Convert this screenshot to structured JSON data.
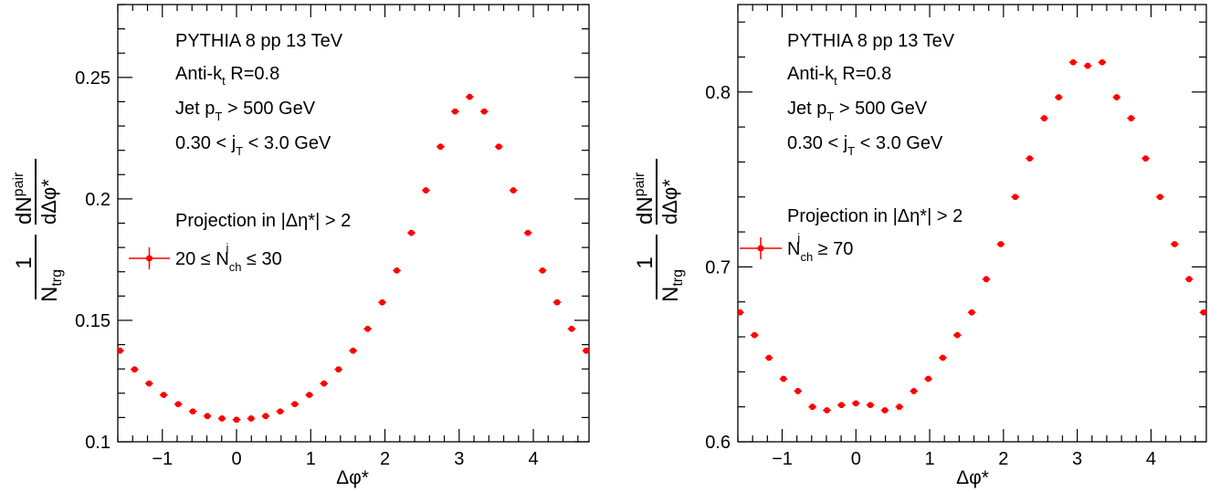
{
  "chart_data": [
    {
      "type": "scatter",
      "xlabel": "Δφ*",
      "ylabel": {
        "frac1_num": "1",
        "frac1_den": "N",
        "frac1_den_sub": "trg",
        "frac2_num": "dN",
        "frac2_num_sup": "pair",
        "frac2_den": "dΔφ*"
      },
      "xlim": [
        -1.6,
        4.75
      ],
      "ylim": [
        0.1,
        0.28
      ],
      "xticks": [
        {
          "v": -1,
          "label": "−1"
        },
        {
          "v": 0,
          "label": "0"
        },
        {
          "v": 1,
          "label": "1"
        },
        {
          "v": 2,
          "label": "2"
        },
        {
          "v": 3,
          "label": "3"
        },
        {
          "v": 4,
          "label": "4"
        }
      ],
      "yticks": [
        {
          "v": 0.1,
          "label": "0.1"
        },
        {
          "v": 0.15,
          "label": "0.15"
        },
        {
          "v": 0.2,
          "label": "0.2"
        },
        {
          "v": 0.25,
          "label": "0.25"
        }
      ],
      "annotations": {
        "generator": "PYTHIA 8 pp 13 TeV",
        "algo_pre": "Anti-k",
        "algo_sub": "t",
        "algo_post": " R=0.8",
        "jet_pre": "Jet p",
        "jet_sub": "T",
        "jet_post": " > 500 GeV",
        "jt_pre": "0.30 < j",
        "jt_sub": "T",
        "jt_post": " < 3.0 GeV",
        "projection": "Projection in |Δη*| > 2"
      },
      "legend": {
        "pre": "20 ≤ N",
        "sub": "ch",
        "sup": "j",
        "post": " ≤ 30"
      },
      "series": [
        {
          "color": "#ff0000",
          "x": [
            -1.5708,
            -1.3744,
            -1.1781,
            -0.9817,
            -0.7854,
            -0.589,
            -0.3927,
            -0.1963,
            0.0,
            0.1963,
            0.3927,
            0.589,
            0.7854,
            0.9817,
            1.1781,
            1.3744,
            1.5708,
            1.7671,
            1.9635,
            2.1598,
            2.3562,
            2.5525,
            2.7489,
            2.9452,
            3.1416,
            3.3379,
            3.5343,
            3.7306,
            3.927,
            4.1233,
            4.3197,
            4.516,
            4.7124
          ],
          "y": [
            0.1375,
            0.1298,
            0.124,
            0.1193,
            0.1155,
            0.1125,
            0.1106,
            0.1096,
            0.1091,
            0.1096,
            0.1106,
            0.1125,
            0.1155,
            0.1193,
            0.124,
            0.1298,
            0.1375,
            0.1465,
            0.1574,
            0.1705,
            0.186,
            0.2035,
            0.2215,
            0.236,
            0.242,
            0.236,
            0.2215,
            0.2035,
            0.186,
            0.1705,
            0.1574,
            0.1465,
            0.1375
          ]
        }
      ]
    },
    {
      "type": "scatter",
      "xlabel": "Δφ*",
      "ylabel": {
        "frac1_num": "1",
        "frac1_den": "N",
        "frac1_den_sub": "trg",
        "frac2_num": "dN",
        "frac2_num_sup": "pair",
        "frac2_den": "dΔφ*"
      },
      "xlim": [
        -1.6,
        4.75
      ],
      "ylim": [
        0.6,
        0.85
      ],
      "xticks": [
        {
          "v": -1,
          "label": "−1"
        },
        {
          "v": 0,
          "label": "0"
        },
        {
          "v": 1,
          "label": "1"
        },
        {
          "v": 2,
          "label": "2"
        },
        {
          "v": 3,
          "label": "3"
        },
        {
          "v": 4,
          "label": "4"
        }
      ],
      "yticks": [
        {
          "v": 0.6,
          "label": "0.6"
        },
        {
          "v": 0.7,
          "label": "0.7"
        },
        {
          "v": 0.8,
          "label": "0.8"
        }
      ],
      "annotations": {
        "generator": "PYTHIA 8 pp 13 TeV",
        "algo_pre": "Anti-k",
        "algo_sub": "t",
        "algo_post": " R=0.8",
        "jet_pre": "Jet p",
        "jet_sub": "T",
        "jet_post": " > 500 GeV",
        "jt_pre": "0.30 < j",
        "jt_sub": "T",
        "jt_post": " < 3.0 GeV",
        "projection": "Projection in |Δη*| > 2"
      },
      "legend": {
        "pre": "N",
        "sub": "ch",
        "sup": "j",
        "post": " ≥ 70"
      },
      "series": [
        {
          "color": "#ff0000",
          "x": [
            -1.5708,
            -1.3744,
            -1.1781,
            -0.9817,
            -0.7854,
            -0.589,
            -0.3927,
            -0.1963,
            0.0,
            0.1963,
            0.3927,
            0.589,
            0.7854,
            0.9817,
            1.1781,
            1.3744,
            1.5708,
            1.7671,
            1.9635,
            2.1598,
            2.3562,
            2.5525,
            2.7489,
            2.9452,
            3.1416,
            3.3379,
            3.5343,
            3.7306,
            3.927,
            4.1233,
            4.3197,
            4.516,
            4.7124
          ],
          "y": [
            0.674,
            0.661,
            0.648,
            0.636,
            0.629,
            0.62,
            0.618,
            0.621,
            0.622,
            0.621,
            0.618,
            0.62,
            0.629,
            0.636,
            0.648,
            0.661,
            0.674,
            0.693,
            0.713,
            0.74,
            0.762,
            0.785,
            0.797,
            0.817,
            0.815,
            0.817,
            0.797,
            0.785,
            0.762,
            0.74,
            0.713,
            0.693,
            0.674
          ]
        }
      ]
    }
  ]
}
